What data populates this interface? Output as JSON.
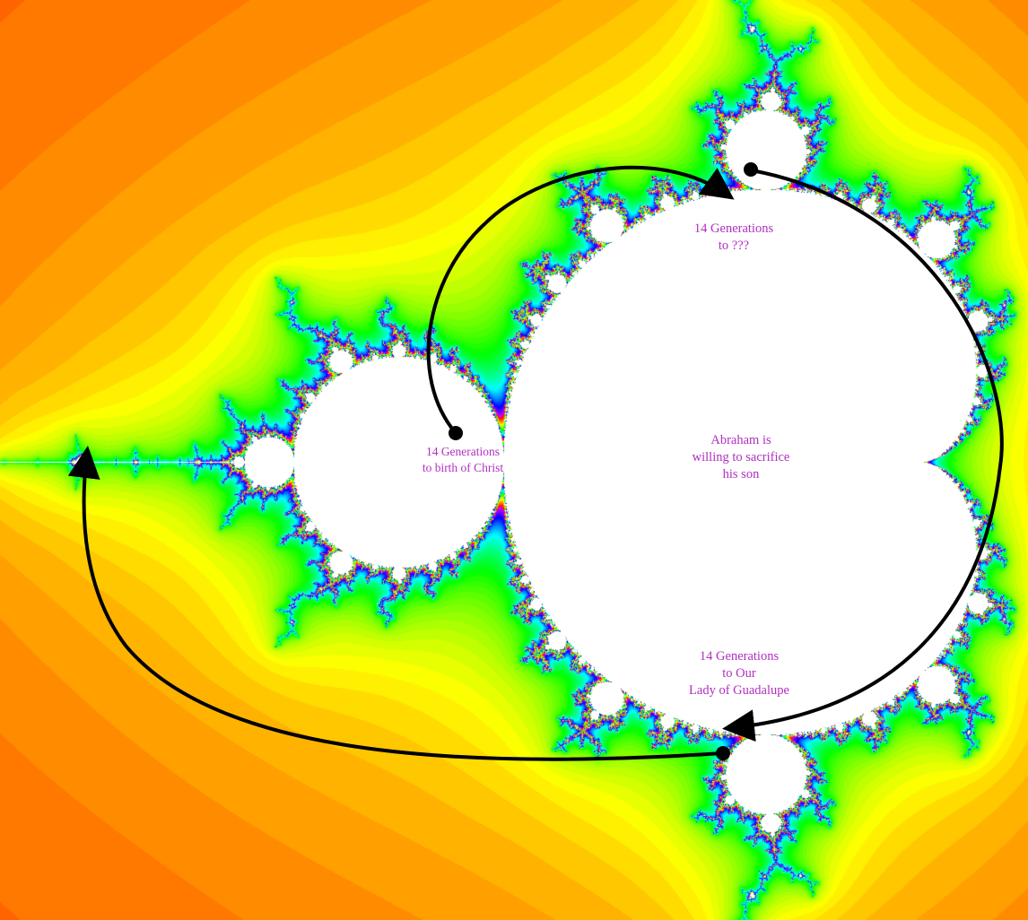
{
  "colors": {
    "label_text": "#b02fc0",
    "arrow": "#000000",
    "set_interior": "#ffffff"
  },
  "labels": {
    "abraham": [
      "Abraham is",
      "willing to sacrifice",
      "his son"
    ],
    "christ": [
      "14 Generations",
      "to birth of Christ"
    ],
    "unknown": [
      "14 Generations",
      "to ???"
    ],
    "guadalupe": [
      "14 Generations",
      "to Our",
      "Lady of Guadalupe"
    ]
  }
}
